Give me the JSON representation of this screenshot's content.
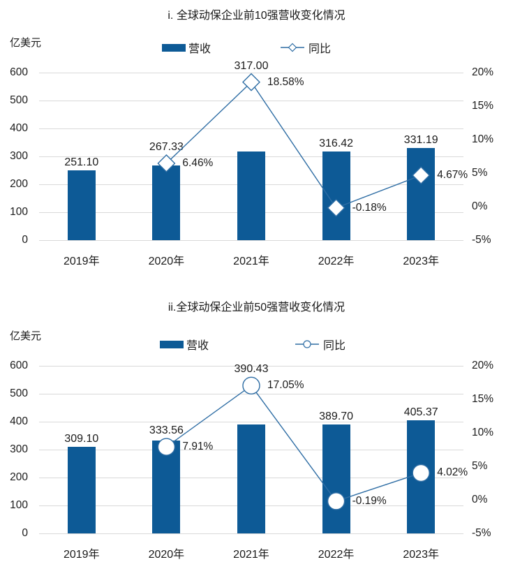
{
  "colors": {
    "bar": "#0d5a96",
    "line": "#2e6da4",
    "marker_fill": "#ffffff",
    "grid": "#d9d9d9",
    "text": "#1a1a1a"
  },
  "chart_data": [
    {
      "type": "combo_bar_line",
      "title": "i. 全球动保企业前10强营收变化情况",
      "unit_label": "亿美元",
      "legend": {
        "bar_label": "营收",
        "line_label": "同比",
        "line_marker": "diamond",
        "position": "top"
      },
      "grid": true,
      "categories": [
        "2019年",
        "2020年",
        "2021年",
        "2022年",
        "2023年"
      ],
      "left_axis": {
        "min": 0,
        "max": 600,
        "ticks": [
          "600",
          "500",
          "400",
          "300",
          "200",
          "100",
          "0"
        ]
      },
      "right_axis": {
        "min": -5,
        "max": 20,
        "ticks": [
          "20%",
          "15%",
          "10%",
          "5%",
          "0%",
          "-5%"
        ]
      },
      "series": [
        {
          "name": "营收",
          "type": "bar",
          "axis": "left",
          "values": [
            251.1,
            267.33,
            317.0,
            316.42,
            331.19
          ],
          "labels": [
            "251.10",
            "267.33",
            "317.00",
            "316.42",
            "331.19"
          ]
        },
        {
          "name": "同比",
          "type": "line",
          "axis": "right",
          "marker": "diamond",
          "values": [
            null,
            6.46,
            18.58,
            -0.18,
            4.67
          ],
          "labels": [
            null,
            "6.46%",
            "18.58%",
            "-0.18%",
            "4.67%"
          ]
        }
      ]
    },
    {
      "type": "combo_bar_line",
      "title": "ii.全球动保企业前50强营收变化情况",
      "unit_label": "亿美元",
      "legend": {
        "bar_label": "营收",
        "line_label": "同比",
        "line_marker": "circle",
        "position": "top"
      },
      "grid": true,
      "categories": [
        "2019年",
        "2020年",
        "2021年",
        "2022年",
        "2023年"
      ],
      "left_axis": {
        "min": 0,
        "max": 600,
        "ticks": [
          "600",
          "500",
          "400",
          "300",
          "200",
          "100",
          "0"
        ]
      },
      "right_axis": {
        "min": -5,
        "max": 20,
        "ticks": [
          "20%",
          "15%",
          "10%",
          "5%",
          "0%",
          "-5%"
        ]
      },
      "series": [
        {
          "name": "营收",
          "type": "bar",
          "axis": "left",
          "values": [
            309.1,
            333.56,
            390.43,
            389.7,
            405.37
          ],
          "labels": [
            "309.10",
            "333.56",
            "390.43",
            "389.70",
            "405.37"
          ]
        },
        {
          "name": "同比",
          "type": "line",
          "axis": "right",
          "marker": "circle",
          "values": [
            null,
            7.91,
            17.05,
            -0.19,
            4.02
          ],
          "labels": [
            null,
            "7.91%",
            "17.05%",
            "-0.19%",
            "4.02%"
          ]
        }
      ]
    }
  ]
}
